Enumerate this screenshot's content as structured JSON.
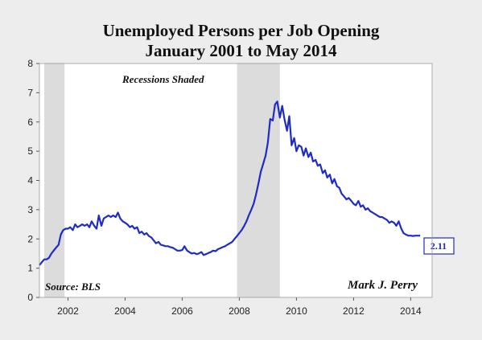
{
  "chart_data": {
    "type": "line",
    "title": "Unemployed Persons per Job Opening",
    "subtitle": "January 2001 to May 2014",
    "xlabel": "",
    "ylabel": "",
    "xlim": [
      2001.0,
      2014.75
    ],
    "ylim": [
      0,
      8
    ],
    "yticks": [
      "0",
      "1",
      "2",
      "3",
      "4",
      "5",
      "6",
      "7",
      "8"
    ],
    "xticks": [
      "2002",
      "2004",
      "2006",
      "2008",
      "2010",
      "2012",
      "2014"
    ],
    "grid": false,
    "line_color": "#1f2bc4",
    "recession_color": "#dcdcdc",
    "recessions": [
      {
        "start": 2001.17,
        "end": 2001.88
      },
      {
        "start": 2007.92,
        "end": 2009.42
      }
    ],
    "annotations": {
      "recessions_note": "Recessions Shaded",
      "source": "Source: BLS",
      "author": "Mark J. Perry",
      "last_value": "2.11"
    },
    "series": [
      {
        "x": [
          2001.0,
          2001.08,
          2001.17,
          2001.25,
          2001.33,
          2001.42,
          2001.5,
          2001.58,
          2001.67,
          2001.75,
          2001.83,
          2001.92,
          2002.0,
          2002.08,
          2002.17,
          2002.25,
          2002.33,
          2002.42,
          2002.5,
          2002.58,
          2002.67,
          2002.75,
          2002.83,
          2002.92,
          2003.0,
          2003.08,
          2003.17,
          2003.25,
          2003.33,
          2003.42,
          2003.5,
          2003.58,
          2003.67,
          2003.75,
          2003.83,
          2003.92,
          2004.0,
          2004.08,
          2004.17,
          2004.25,
          2004.33,
          2004.42,
          2004.5,
          2004.58,
          2004.67,
          2004.75,
          2004.83,
          2004.92,
          2005.0,
          2005.08,
          2005.17,
          2005.25,
          2005.33,
          2005.42,
          2005.5,
          2005.58,
          2005.67,
          2005.75,
          2005.83,
          2005.92,
          2006.0,
          2006.08,
          2006.17,
          2006.25,
          2006.33,
          2006.42,
          2006.5,
          2006.58,
          2006.67,
          2006.75,
          2006.83,
          2006.92,
          2007.0,
          2007.08,
          2007.17,
          2007.25,
          2007.33,
          2007.42,
          2007.5,
          2007.58,
          2007.67,
          2007.75,
          2007.83,
          2007.92,
          2008.0,
          2008.08,
          2008.17,
          2008.25,
          2008.33,
          2008.42,
          2008.5,
          2008.58,
          2008.67,
          2008.75,
          2008.83,
          2008.92,
          2009.0,
          2009.08,
          2009.17,
          2009.25,
          2009.33,
          2009.42,
          2009.5,
          2009.58,
          2009.67,
          2009.75,
          2009.83,
          2009.92,
          2010.0,
          2010.08,
          2010.17,
          2010.25,
          2010.33,
          2010.42,
          2010.5,
          2010.58,
          2010.67,
          2010.75,
          2010.83,
          2010.92,
          2011.0,
          2011.08,
          2011.17,
          2011.25,
          2011.33,
          2011.42,
          2011.5,
          2011.58,
          2011.67,
          2011.75,
          2011.83,
          2011.92,
          2012.0,
          2012.08,
          2012.17,
          2012.25,
          2012.33,
          2012.42,
          2012.5,
          2012.58,
          2012.67,
          2012.75,
          2012.83,
          2012.92,
          2013.0,
          2013.08,
          2013.17,
          2013.25,
          2013.33,
          2013.42,
          2013.5,
          2013.58,
          2013.67,
          2013.75,
          2013.83,
          2013.92,
          2014.0,
          2014.08,
          2014.17,
          2014.25,
          2014.33
        ],
        "values": [
          1.1,
          1.2,
          1.3,
          1.3,
          1.35,
          1.5,
          1.6,
          1.7,
          1.8,
          2.15,
          2.3,
          2.35,
          2.35,
          2.4,
          2.3,
          2.5,
          2.4,
          2.45,
          2.5,
          2.45,
          2.5,
          2.4,
          2.6,
          2.45,
          2.35,
          2.8,
          2.45,
          2.7,
          2.75,
          2.8,
          2.75,
          2.8,
          2.75,
          2.9,
          2.7,
          2.6,
          2.55,
          2.5,
          2.4,
          2.45,
          2.35,
          2.4,
          2.2,
          2.25,
          2.15,
          2.2,
          2.1,
          2.05,
          1.95,
          1.85,
          1.9,
          1.8,
          1.78,
          1.75,
          1.75,
          1.72,
          1.7,
          1.65,
          1.6,
          1.6,
          1.62,
          1.75,
          1.6,
          1.55,
          1.5,
          1.52,
          1.48,
          1.5,
          1.55,
          1.45,
          1.48,
          1.52,
          1.55,
          1.6,
          1.58,
          1.65,
          1.68,
          1.72,
          1.75,
          1.8,
          1.85,
          1.9,
          2.0,
          2.1,
          2.2,
          2.3,
          2.45,
          2.6,
          2.8,
          3.0,
          3.2,
          3.5,
          3.9,
          4.3,
          4.55,
          4.85,
          5.3,
          6.1,
          6.05,
          6.6,
          6.7,
          6.15,
          6.55,
          6.1,
          5.7,
          6.2,
          5.2,
          5.45,
          5.0,
          5.2,
          5.15,
          4.85,
          5.1,
          4.8,
          4.95,
          4.65,
          4.7,
          4.5,
          4.55,
          4.25,
          4.35,
          4.1,
          4.2,
          3.9,
          4.05,
          3.8,
          3.75,
          3.55,
          3.45,
          3.35,
          3.4,
          3.3,
          3.2,
          3.15,
          3.3,
          3.1,
          3.15,
          3.0,
          3.05,
          2.95,
          2.9,
          2.85,
          2.8,
          2.75,
          2.75,
          2.7,
          2.65,
          2.55,
          2.6,
          2.55,
          2.45,
          2.6,
          2.35,
          2.2,
          2.15,
          2.11,
          2.11,
          2.1,
          2.11,
          2.11,
          2.11
        ]
      }
    ]
  }
}
